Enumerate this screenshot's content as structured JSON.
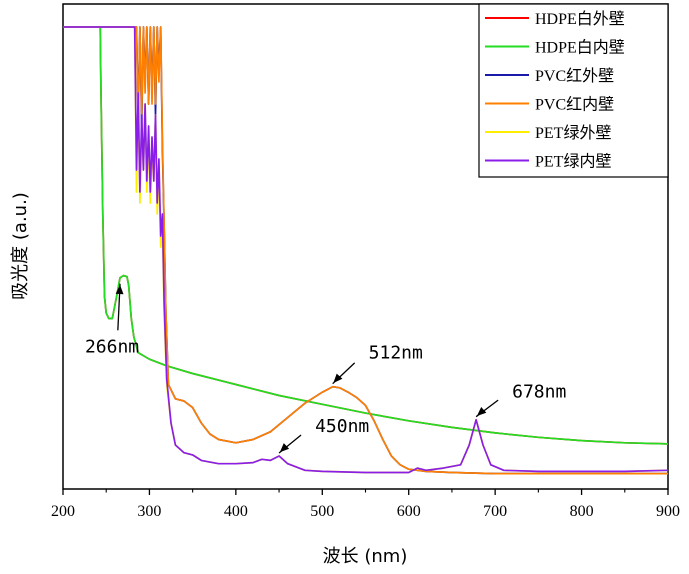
{
  "chart_data": {
    "type": "line",
    "xlabel": "波长 (nm)",
    "ylabel": "吸光度 (a.u.)",
    "xlim": [
      200,
      900
    ],
    "ylim": [
      0,
      4.2
    ],
    "y_ticks_shown": false,
    "x_ticks": [
      "200",
      "300",
      "400",
      "500",
      "600",
      "700",
      "800",
      "900"
    ],
    "legend_position": "top-right",
    "series": [
      {
        "name": "HDPE白外壁",
        "color": "#ff0000",
        "x": [
          243,
          244,
          246,
          248,
          250,
          253,
          257,
          262,
          266,
          270,
          274,
          276,
          279,
          282,
          287,
          300,
          320,
          350,
          400,
          450,
          500,
          550,
          600,
          650,
          700,
          750,
          800,
          850,
          900
        ],
        "y": [
          4.2,
          3.6,
          2.5,
          1.75,
          1.6,
          1.55,
          1.55,
          1.75,
          1.92,
          1.94,
          1.93,
          1.85,
          1.55,
          1.38,
          1.24,
          1.18,
          1.12,
          1.05,
          0.95,
          0.85,
          0.77,
          0.69,
          0.62,
          0.56,
          0.51,
          0.47,
          0.44,
          0.42,
          0.41
        ]
      },
      {
        "name": "HDPE白内壁",
        "color": "#22dd22",
        "x": [
          243,
          244,
          246,
          248,
          250,
          253,
          257,
          262,
          266,
          270,
          274,
          276,
          279,
          282,
          287,
          300,
          320,
          350,
          400,
          450,
          500,
          550,
          600,
          650,
          700,
          750,
          800,
          850,
          900
        ],
        "y": [
          4.2,
          3.6,
          2.5,
          1.75,
          1.6,
          1.55,
          1.55,
          1.75,
          1.92,
          1.94,
          1.93,
          1.85,
          1.55,
          1.38,
          1.24,
          1.18,
          1.12,
          1.05,
          0.95,
          0.85,
          0.77,
          0.69,
          0.62,
          0.56,
          0.51,
          0.47,
          0.44,
          0.42,
          0.41
        ]
      },
      {
        "name": "PVC红外壁",
        "color": "#1a1aaa",
        "x": [
          200,
          285,
          287,
          289,
          291,
          293,
          295,
          297,
          299,
          301,
          303,
          305,
          307,
          309,
          311,
          313,
          315,
          317,
          319,
          322,
          330,
          340,
          350,
          360,
          370,
          380,
          400,
          420,
          440,
          460,
          480,
          500,
          512,
          520,
          530,
          540,
          550,
          560,
          570,
          580,
          590,
          600,
          620,
          650,
          700,
          750,
          800,
          850,
          900
        ],
        "y": [
          4.2,
          4.2,
          3.4,
          4.2,
          3.3,
          4.2,
          3.7,
          4.2,
          3.5,
          4.2,
          3.6,
          4.2,
          3.4,
          4.2,
          3.8,
          4.2,
          3.1,
          2.4,
          1.6,
          0.95,
          0.82,
          0.8,
          0.74,
          0.6,
          0.5,
          0.45,
          0.42,
          0.45,
          0.52,
          0.65,
          0.78,
          0.88,
          0.93,
          0.92,
          0.88,
          0.83,
          0.76,
          0.62,
          0.45,
          0.3,
          0.22,
          0.18,
          0.16,
          0.15,
          0.14,
          0.14,
          0.14,
          0.14,
          0.14
        ]
      },
      {
        "name": "PVC红内壁",
        "color": "#ff8000",
        "x": [
          200,
          285,
          287,
          289,
          291,
          293,
          295,
          297,
          299,
          301,
          303,
          305,
          307,
          309,
          311,
          313,
          315,
          317,
          319,
          322,
          330,
          340,
          350,
          360,
          370,
          380,
          400,
          420,
          440,
          460,
          480,
          500,
          512,
          520,
          530,
          540,
          550,
          560,
          570,
          580,
          590,
          600,
          620,
          650,
          700,
          750,
          800,
          850,
          900
        ],
        "y": [
          4.2,
          4.2,
          3.3,
          4.2,
          3.4,
          4.2,
          3.6,
          4.2,
          3.5,
          4.2,
          3.5,
          4.2,
          3.5,
          4.2,
          3.7,
          4.2,
          3.2,
          2.4,
          1.6,
          0.95,
          0.82,
          0.8,
          0.74,
          0.6,
          0.5,
          0.45,
          0.42,
          0.45,
          0.52,
          0.65,
          0.78,
          0.88,
          0.93,
          0.92,
          0.88,
          0.83,
          0.76,
          0.62,
          0.45,
          0.3,
          0.22,
          0.18,
          0.16,
          0.15,
          0.14,
          0.14,
          0.14,
          0.14,
          0.14
        ]
      },
      {
        "name": "PET绿外壁",
        "color": "#ffee00",
        "x": [
          200,
          283,
          285,
          287,
          289,
          291,
          293,
          295,
          297,
          299,
          301,
          303,
          305,
          307,
          309,
          311,
          313,
          315,
          317,
          320,
          325,
          330,
          340,
          350,
          360,
          380,
          400,
          420,
          430,
          440,
          450,
          460,
          480,
          500,
          550,
          600,
          610,
          620,
          640,
          660,
          670,
          678,
          686,
          695,
          710,
          750,
          800,
          850,
          900
        ],
        "y": [
          4.2,
          4.2,
          2.7,
          3.6,
          2.6,
          3.3,
          2.9,
          3.5,
          2.7,
          3.2,
          2.6,
          3.1,
          2.8,
          3.4,
          2.5,
          2.9,
          2.2,
          2.4,
          1.6,
          0.95,
          0.6,
          0.4,
          0.33,
          0.31,
          0.26,
          0.23,
          0.23,
          0.24,
          0.27,
          0.26,
          0.3,
          0.23,
          0.17,
          0.16,
          0.15,
          0.15,
          0.19,
          0.17,
          0.19,
          0.22,
          0.4,
          0.63,
          0.4,
          0.22,
          0.17,
          0.16,
          0.16,
          0.16,
          0.17
        ]
      },
      {
        "name": "PET绿内壁",
        "color": "#8a1ee8",
        "x": [
          200,
          283,
          285,
          287,
          289,
          291,
          293,
          295,
          297,
          299,
          301,
          303,
          305,
          307,
          309,
          311,
          313,
          315,
          317,
          320,
          325,
          330,
          340,
          350,
          360,
          380,
          400,
          420,
          430,
          440,
          450,
          460,
          480,
          500,
          550,
          600,
          610,
          620,
          640,
          660,
          670,
          678,
          686,
          695,
          710,
          750,
          800,
          850,
          900
        ],
        "y": [
          4.2,
          4.2,
          2.9,
          3.6,
          2.7,
          3.4,
          2.9,
          3.5,
          2.8,
          3.3,
          2.7,
          3.2,
          2.8,
          3.4,
          2.6,
          3.0,
          2.3,
          2.5,
          1.7,
          1.0,
          0.6,
          0.4,
          0.33,
          0.31,
          0.26,
          0.23,
          0.23,
          0.24,
          0.27,
          0.26,
          0.3,
          0.23,
          0.17,
          0.16,
          0.15,
          0.15,
          0.19,
          0.17,
          0.19,
          0.22,
          0.4,
          0.63,
          0.4,
          0.22,
          0.17,
          0.16,
          0.16,
          0.16,
          0.17
        ]
      }
    ],
    "annotations": [
      {
        "text": "266nm",
        "x": 266,
        "y": 1.92
      },
      {
        "text": "512nm",
        "x": 512,
        "y": 0.93
      },
      {
        "text": "450nm",
        "x": 450,
        "y": 0.3
      },
      {
        "text": "678nm",
        "x": 678,
        "y": 0.63
      }
    ]
  }
}
